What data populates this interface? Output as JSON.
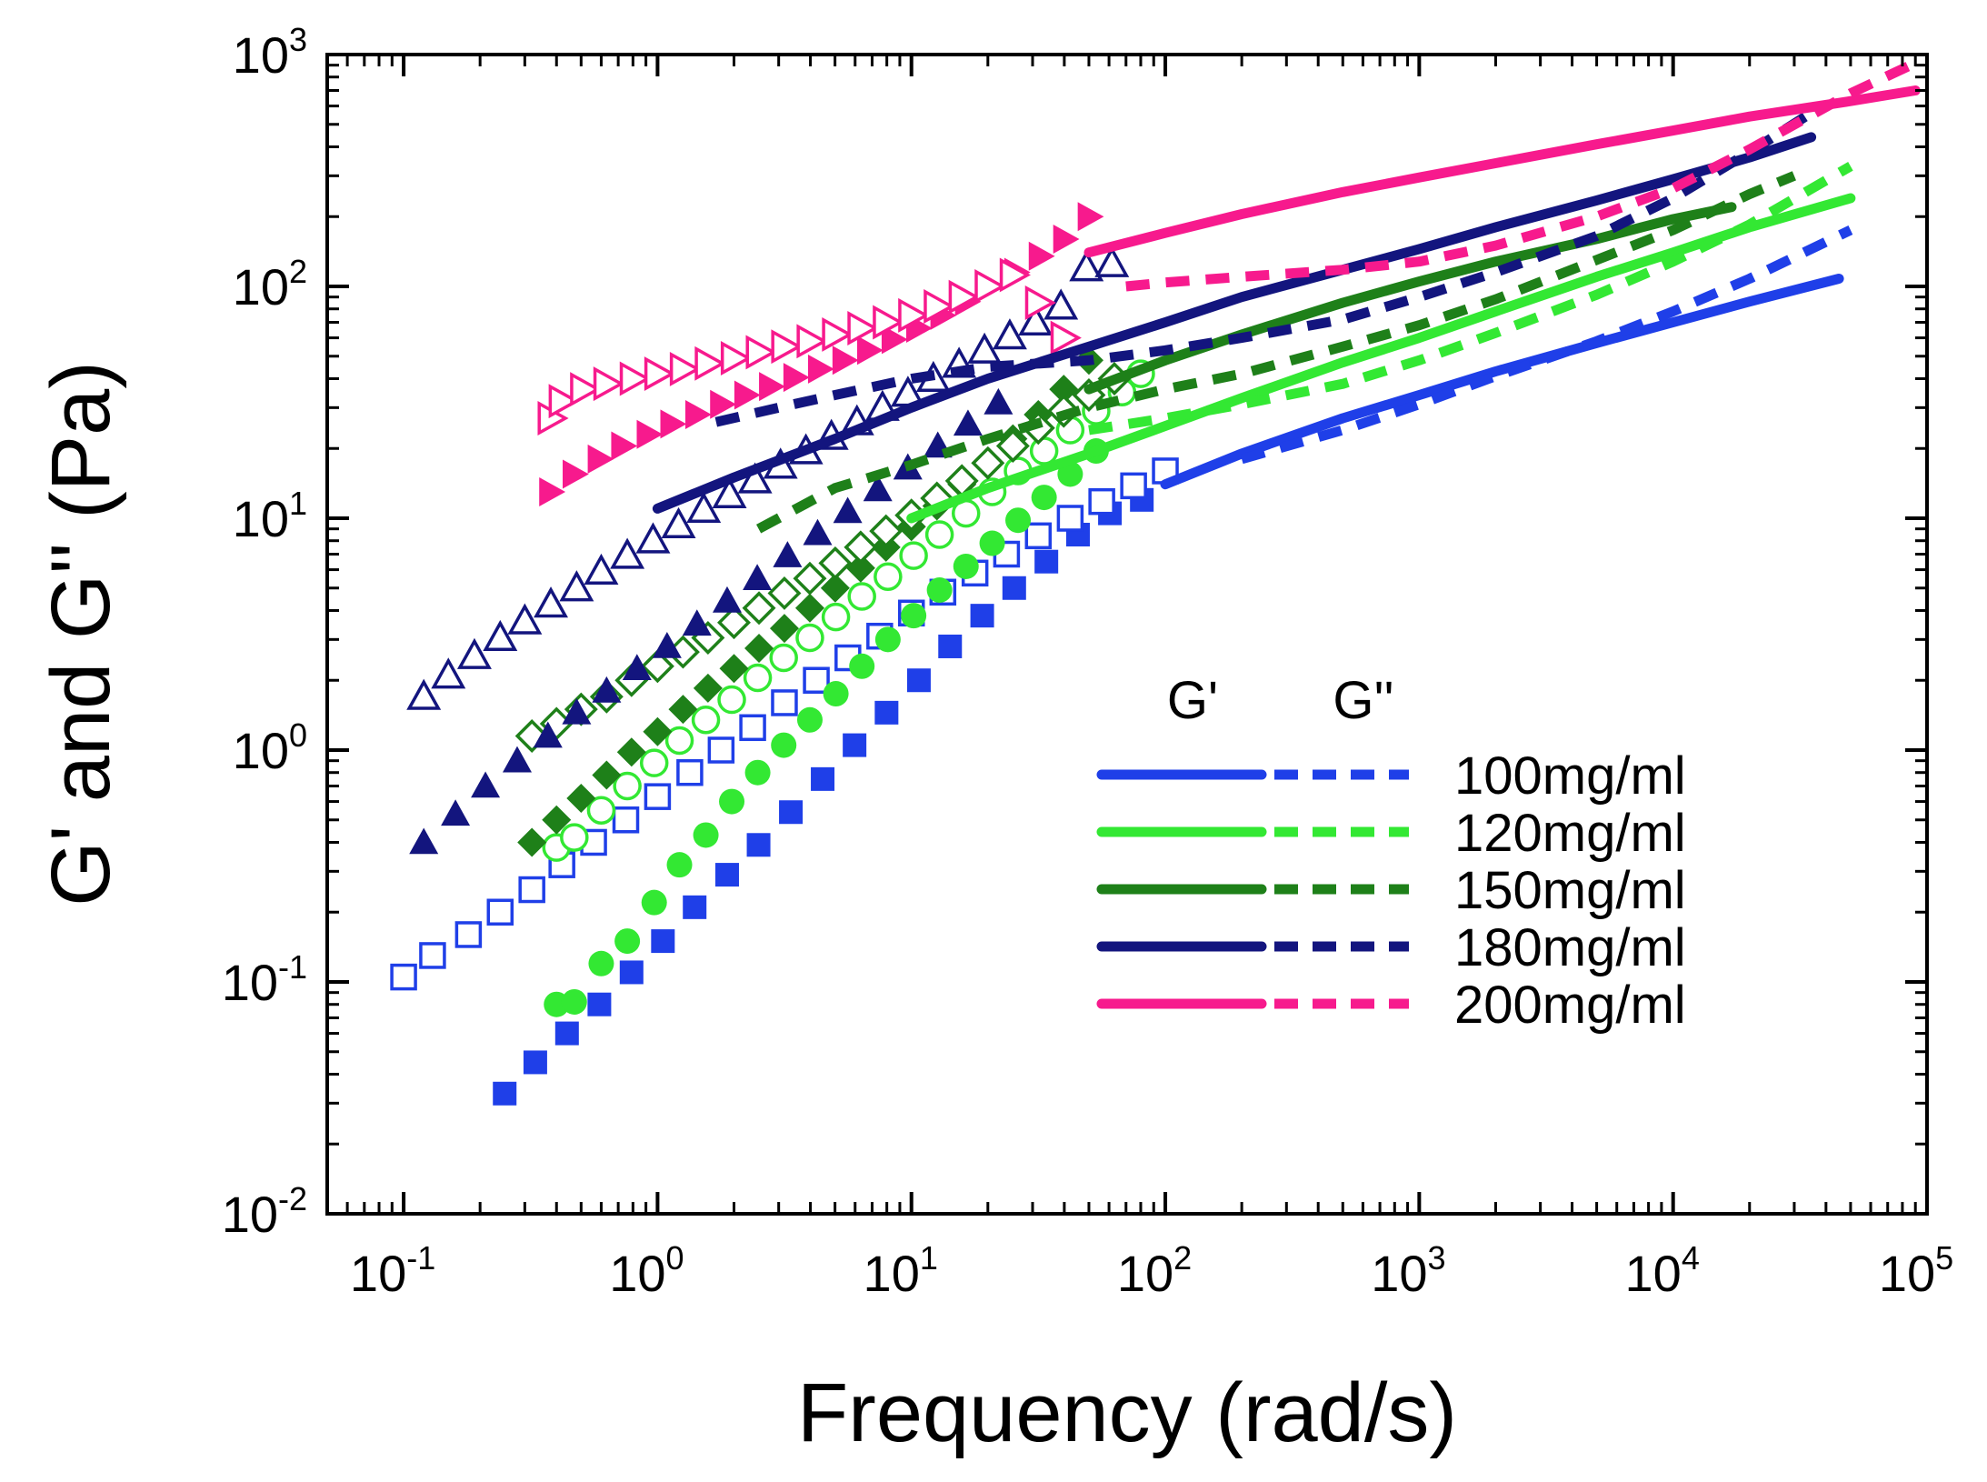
{
  "chart_data": {
    "type": "scatter",
    "scale": {
      "x": "log",
      "y": "log"
    },
    "xlabel": "Frequency (rad/s)",
    "ylabel": "G' and G'' (Pa)",
    "xlim": [
      0.05,
      100000
    ],
    "ylim": [
      0.01,
      1000
    ],
    "x_ticks": [
      {
        "base": "10",
        "exp": "-1",
        "value": 0.1
      },
      {
        "base": "10",
        "exp": "0",
        "value": 1
      },
      {
        "base": "10",
        "exp": "1",
        "value": 10
      },
      {
        "base": "10",
        "exp": "2",
        "value": 100
      },
      {
        "base": "10",
        "exp": "3",
        "value": 1000
      },
      {
        "base": "10",
        "exp": "4",
        "value": 10000
      },
      {
        "base": "10",
        "exp": "5",
        "value": 100000
      }
    ],
    "y_ticks": [
      {
        "base": "10",
        "exp": "-2",
        "value": 0.01
      },
      {
        "base": "10",
        "exp": "-1",
        "value": 0.1
      },
      {
        "base": "10",
        "exp": "0",
        "value": 1
      },
      {
        "base": "10",
        "exp": "1",
        "value": 10
      },
      {
        "base": "10",
        "exp": "2",
        "value": 100
      },
      {
        "base": "10",
        "exp": "3",
        "value": 1000
      }
    ],
    "legend": {
      "position": "lower-right",
      "header_storage": "G'",
      "header_loss": "G''",
      "entries": [
        "100mg/ml",
        "120mg/ml",
        "150mg/ml",
        "180mg/ml",
        "200mg/ml"
      ]
    },
    "series": [
      {
        "name": "100mg/ml",
        "color": "#1f3fe8",
        "marker": "square",
        "storage_points": {
          "x": [
            0.25,
            0.33,
            0.44,
            0.59,
            0.79,
            1.05,
            1.4,
            1.88,
            2.5,
            3.35,
            4.47,
            5.97,
            7.98,
            10.7,
            14.2,
            19,
            25.4,
            34,
            45.3,
            60.5,
            80.8
          ],
          "y": [
            0.033,
            0.045,
            0.06,
            0.08,
            0.11,
            0.15,
            0.21,
            0.29,
            0.39,
            0.54,
            0.75,
            1.05,
            1.45,
            2,
            2.8,
            3.8,
            5,
            6.5,
            8.5,
            10.5,
            12
          ]
        },
        "loss_points": {
          "x": [
            0.1,
            0.13,
            0.18,
            0.24,
            0.32,
            0.42,
            0.56,
            0.75,
            1,
            1.34,
            1.78,
            2.37,
            3.16,
            4.22,
            5.62,
            7.5,
            10,
            13.3,
            17.8,
            23.7,
            31.6,
            42.2,
            56.2,
            75,
            100
          ],
          "y": [
            0.105,
            0.13,
            0.16,
            0.2,
            0.25,
            0.32,
            0.4,
            0.5,
            0.63,
            0.8,
            1,
            1.25,
            1.6,
            2,
            2.5,
            3.1,
            3.9,
            4.8,
            5.8,
            7,
            8.4,
            10,
            11.8,
            13.8,
            16
          ]
        },
        "storage_line": {
          "x": [
            100,
            200,
            500,
            1000,
            2000,
            5000,
            10000,
            20000,
            45000
          ],
          "y": [
            14,
            19,
            27,
            34,
            43,
            57,
            70,
            86,
            108
          ]
        },
        "loss_line": {
          "x": [
            200,
            500,
            1000,
            2000,
            5000,
            10000,
            20000,
            50000
          ],
          "y": [
            18,
            24,
            31,
            41,
            58,
            78,
            108,
            175
          ]
        }
      },
      {
        "name": "120mg/ml",
        "color": "#33e833",
        "marker": "circle",
        "storage_points": {
          "x": [
            0.4,
            0.47,
            0.6,
            0.76,
            0.97,
            1.22,
            1.55,
            1.96,
            2.48,
            3.14,
            3.98,
            5.04,
            6.38,
            8.08,
            10.2,
            12.9,
            16.4,
            20.8,
            26.3,
            33.3,
            42.2,
            53.4
          ],
          "y": [
            0.08,
            0.082,
            0.12,
            0.15,
            0.22,
            0.32,
            0.43,
            0.6,
            0.8,
            1.05,
            1.35,
            1.75,
            2.3,
            3,
            3.8,
            4.9,
            6.2,
            7.8,
            9.8,
            12.3,
            15.5,
            19.5
          ]
        },
        "loss_points": {
          "x": [
            0.4,
            0.47,
            0.6,
            0.76,
            0.97,
            1.22,
            1.55,
            1.96,
            2.48,
            3.14,
            3.98,
            5.04,
            6.38,
            8.08,
            10.2,
            12.9,
            16.4,
            20.8,
            26.3,
            33.3,
            42.2,
            53.4,
            67.5,
            80
          ],
          "y": [
            0.38,
            0.42,
            0.55,
            0.7,
            0.88,
            1.1,
            1.35,
            1.65,
            2.05,
            2.5,
            3.05,
            3.75,
            4.6,
            5.6,
            6.9,
            8.5,
            10.5,
            13,
            16,
            19.5,
            24,
            29,
            35,
            42
          ]
        },
        "storage_line": {
          "x": [
            10,
            20,
            50,
            100,
            200,
            500,
            1000,
            2000,
            5000,
            10000,
            20000,
            50000
          ],
          "y": [
            10,
            13.5,
            19,
            25,
            33,
            47,
            60,
            78,
            110,
            140,
            180,
            240
          ]
        },
        "loss_line": {
          "x": [
            50,
            100,
            200,
            500,
            1000,
            2000,
            5000,
            10000,
            20000,
            50000
          ],
          "y": [
            24,
            27,
            31,
            38,
            48,
            63,
            92,
            128,
            185,
            330
          ]
        }
      },
      {
        "name": "150mg/ml",
        "color": "#1e8019",
        "marker": "diamond",
        "storage_points": {
          "x": [
            0.32,
            0.4,
            0.5,
            0.63,
            0.79,
            1,
            1.26,
            1.58,
            2,
            2.51,
            3.16,
            3.98,
            5.01,
            6.31,
            7.94,
            10,
            12.6,
            15.8,
            20,
            25.1,
            31.6,
            39.8,
            50
          ],
          "y": [
            0.4,
            0.5,
            0.62,
            0.78,
            0.98,
            1.2,
            1.5,
            1.85,
            2.25,
            2.75,
            3.35,
            4.1,
            5,
            6.1,
            7.5,
            9.2,
            11.3,
            14,
            17.5,
            22,
            28,
            36,
            48
          ]
        },
        "loss_points": {
          "x": [
            0.32,
            0.4,
            0.5,
            0.63,
            0.79,
            1,
            1.26,
            1.58,
            2,
            2.51,
            3.16,
            3.98,
            5.01,
            6.31,
            7.94,
            10,
            12.6,
            15.8,
            20,
            25.1,
            31.6,
            39.8,
            50,
            63
          ],
          "y": [
            1.15,
            1.3,
            1.5,
            1.7,
            2,
            2.3,
            2.65,
            3.05,
            3.55,
            4.1,
            4.75,
            5.5,
            6.4,
            7.5,
            8.8,
            10.3,
            12.2,
            14.5,
            17.3,
            20.5,
            24.5,
            29,
            34,
            40
          ]
        },
        "storage_line": {
          "x": [
            50,
            100,
            200,
            500,
            1000,
            2000,
            5000,
            10000,
            17000
          ],
          "y": [
            36,
            48,
            62,
            85,
            105,
            128,
            160,
            195,
            220
          ]
        },
        "loss_line": {
          "x": [
            2.5,
            5,
            10,
            20,
            50,
            100,
            200,
            500,
            1000,
            2000,
            5000,
            10000,
            20000,
            30000
          ],
          "y": [
            9,
            13.5,
            17,
            22,
            30,
            36,
            42,
            55,
            68,
            88,
            130,
            175,
            250,
            300
          ]
        }
      },
      {
        "name": "180mg/ml",
        "color": "#13157e",
        "marker": "triangle-up",
        "storage_points": {
          "x": [
            0.12,
            0.16,
            0.21,
            0.28,
            0.37,
            0.48,
            0.63,
            0.83,
            1.09,
            1.43,
            1.88,
            2.47,
            3.25,
            4.27,
            5.61,
            7.37,
            9.68,
            12.7,
            16.7,
            22
          ],
          "y": [
            0.4,
            0.53,
            0.7,
            0.9,
            1.15,
            1.45,
            1.8,
            2.25,
            2.8,
            3.5,
            4.4,
            5.5,
            6.9,
            8.6,
            10.7,
            13.3,
            16.5,
            20.5,
            25.5,
            31.5
          ]
        },
        "loss_points": {
          "x": [
            0.12,
            0.15,
            0.19,
            0.24,
            0.3,
            0.38,
            0.48,
            0.6,
            0.76,
            0.96,
            1.21,
            1.52,
            1.92,
            2.42,
            3.05,
            3.84,
            4.84,
            6.1,
            7.69,
            9.69,
            12.2,
            15.4,
            19.4,
            24.4,
            30.8,
            38.8,
            48.9,
            61.6
          ],
          "y": [
            1.7,
            2.1,
            2.55,
            3.05,
            3.6,
            4.25,
            5,
            5.9,
            6.9,
            8.05,
            9.35,
            10.9,
            12.6,
            14.6,
            16.9,
            19.5,
            22.5,
            26,
            30,
            34.5,
            40,
            46,
            53,
            61,
            70,
            82,
            120,
            125
          ]
        },
        "storage_line": {
          "x": [
            1,
            2,
            5,
            10,
            20,
            50,
            100,
            200,
            500,
            1000,
            2000,
            5000,
            10000,
            20000,
            35000
          ],
          "y": [
            11,
            15,
            22,
            30,
            40,
            55,
            70,
            90,
            118,
            145,
            180,
            235,
            290,
            360,
            440
          ]
        },
        "loss_line": {
          "x": [
            1.7,
            3,
            5,
            10,
            20,
            50,
            100,
            200,
            500,
            1000,
            2000,
            5000,
            10000,
            20000,
            35000
          ],
          "y": [
            26,
            30,
            34,
            40,
            45,
            48,
            53,
            60,
            72,
            90,
            115,
            165,
            240,
            380,
            560
          ]
        }
      },
      {
        "name": "200mg/ml",
        "color": "#f71a8d",
        "marker": "triangle-right",
        "storage_points": {
          "x": [
            0.38,
            0.47,
            0.59,
            0.73,
            0.92,
            1.14,
            1.43,
            1.79,
            2.23,
            2.79,
            3.48,
            4.35,
            5.43,
            6.79,
            8.48,
            10.6,
            13.2,
            16.5,
            20.6,
            25.8,
            32.2,
            40.2,
            50.2
          ],
          "y": [
            13,
            15.5,
            18,
            20.5,
            23,
            25.5,
            28,
            31,
            34,
            37,
            40.5,
            44,
            48,
            53,
            59,
            66,
            75,
            86,
            100,
            115,
            135,
            160,
            200
          ]
        },
        "loss_points": {
          "x": [
            0.38,
            0.42,
            0.51,
            0.63,
            0.8,
            1,
            1.26,
            1.58,
            2,
            2.51,
            3.16,
            3.98,
            5.01,
            6.31,
            7.94,
            10,
            12.6,
            15.8,
            20,
            25.1,
            31.6,
            39.8
          ],
          "y": [
            27,
            32,
            36,
            38,
            40,
            42,
            44,
            46.5,
            49,
            52,
            55,
            58,
            62,
            66,
            70,
            75,
            82,
            90,
            100,
            112,
            85,
            60
          ]
        },
        "storage_line": {
          "x": [
            50,
            100,
            200,
            500,
            1000,
            2000,
            5000,
            10000,
            20000,
            50000,
            90000
          ],
          "y": [
            140,
            170,
            205,
            255,
            295,
            340,
            410,
            470,
            540,
            630,
            700
          ]
        },
        "loss_line": {
          "x": [
            70,
            100,
            200,
            500,
            1000,
            2000,
            5000,
            10000,
            20000,
            50000,
            90000
          ],
          "y": [
            100,
            104,
            110,
            118,
            128,
            150,
            200,
            265,
            390,
            680,
            920
          ]
        }
      }
    ]
  }
}
